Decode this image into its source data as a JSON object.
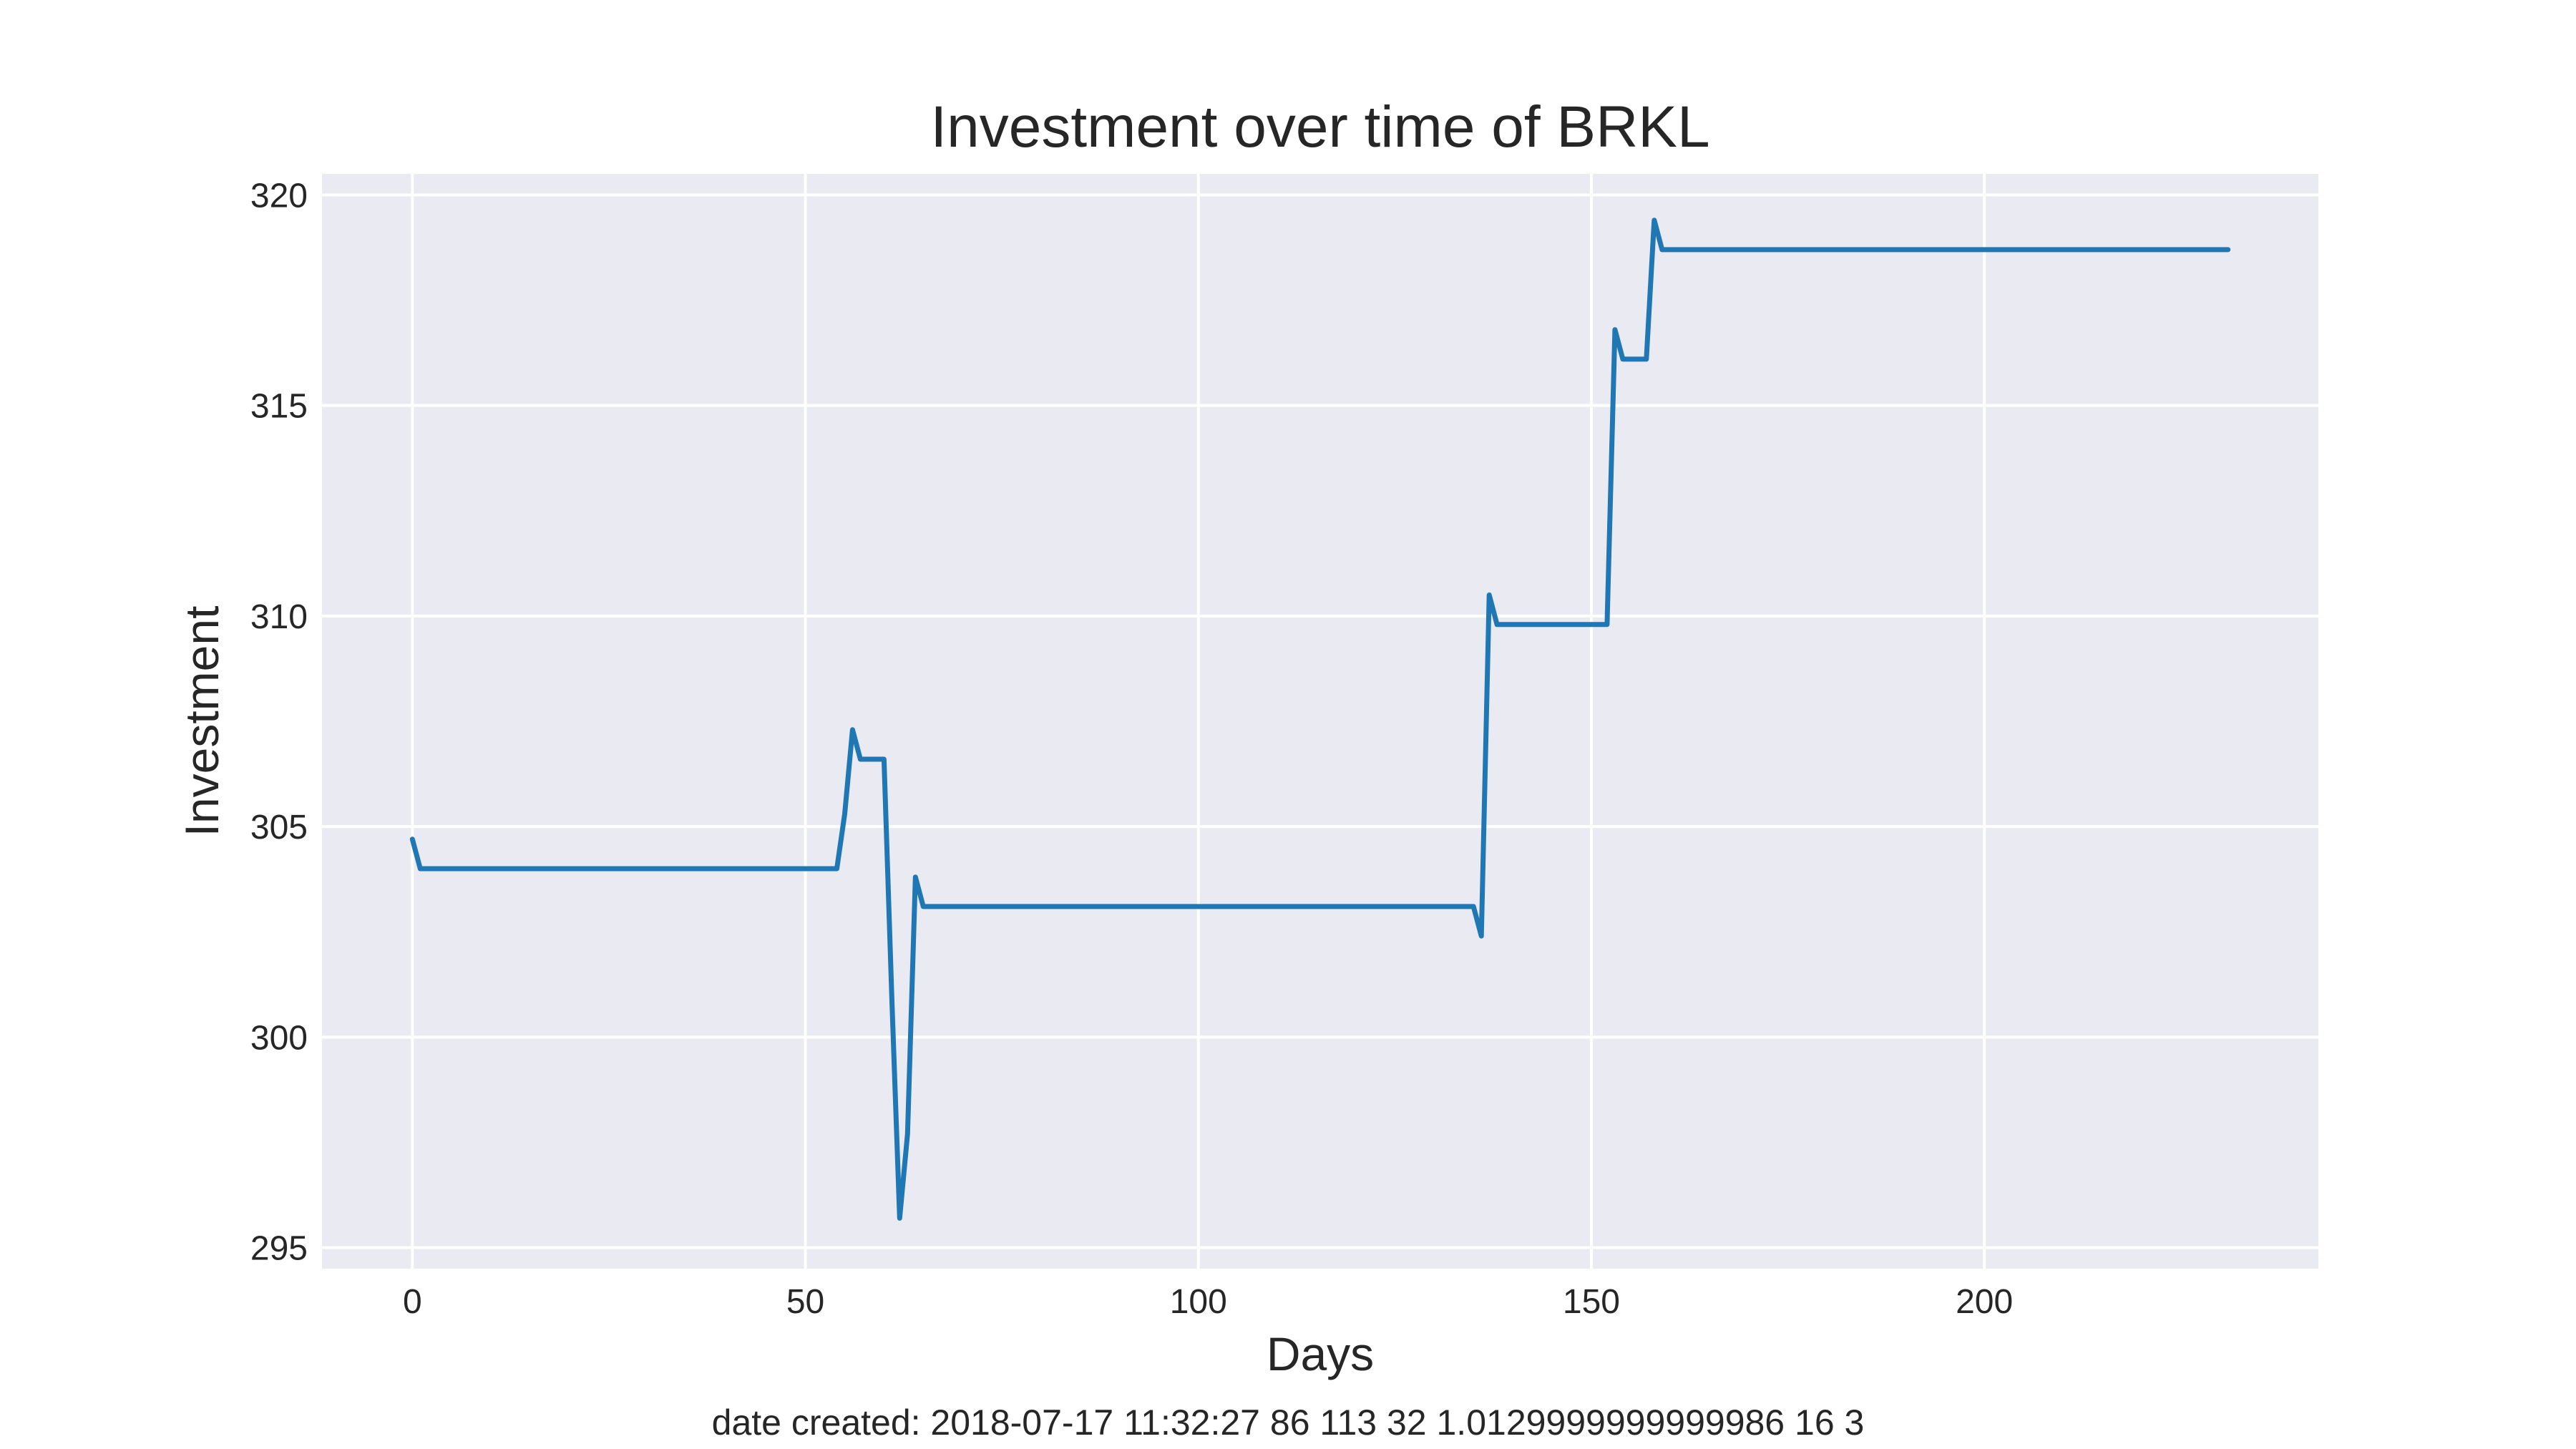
{
  "chart_data": {
    "type": "line",
    "title": "Investment over time of BRKL",
    "xlabel": "Days",
    "ylabel": "Investment",
    "xlim": [
      -11.5,
      242.5
    ],
    "ylim": [
      294.5,
      320.5
    ],
    "xticks": [
      0,
      50,
      100,
      150,
      200
    ],
    "yticks": [
      295,
      300,
      305,
      310,
      315,
      320
    ],
    "grid": true,
    "line_color": "#1f77b4",
    "background_color": "#eaeaf2",
    "series": [
      {
        "x": [
          0,
          1,
          54,
          55,
          56,
          57,
          60,
          61,
          62,
          63,
          64,
          65,
          135,
          136,
          137,
          138,
          152,
          153,
          154,
          157,
          158,
          159,
          231
        ],
        "y": [
          304.7,
          304.0,
          304.0,
          305.3,
          307.3,
          306.6,
          306.6,
          300.9,
          295.7,
          297.7,
          303.8,
          303.1,
          303.1,
          302.4,
          310.5,
          309.8,
          309.8,
          316.8,
          316.1,
          316.1,
          319.4,
          318.7,
          318.7
        ]
      }
    ]
  },
  "footer": "date created: 2018-07-17 11:32:27 86 113 32 1.0129999999999986 16 3"
}
